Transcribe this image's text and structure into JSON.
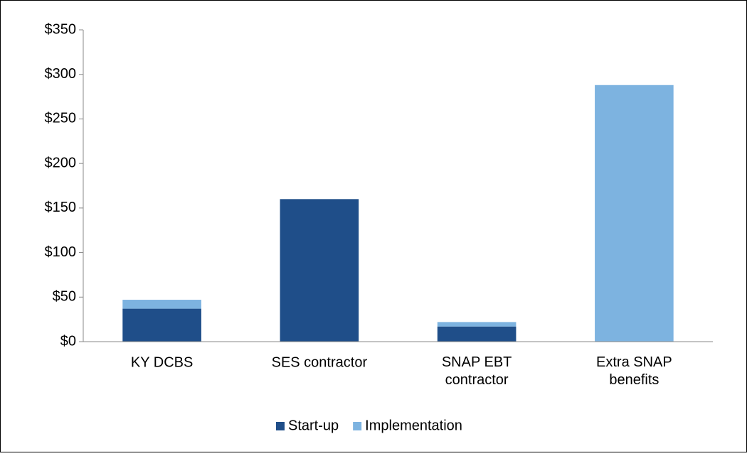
{
  "chart_data": {
    "type": "stacked_bar",
    "categories": [
      "KY DCBS",
      "SES contractor",
      "SNAP EBT\ncontractor",
      "Extra SNAP\nbenefits"
    ],
    "series": [
      {
        "name": "Start-up",
        "color": "#1f4e89",
        "values": [
          37,
          160,
          17,
          0
        ]
      },
      {
        "name": "Implementation",
        "color": "#7db3e0",
        "values": [
          10,
          0,
          5,
          288
        ]
      }
    ],
    "ylim": [
      0,
      350
    ],
    "yticks": [
      {
        "value": 0,
        "label": "$0"
      },
      {
        "value": 50,
        "label": "$50"
      },
      {
        "value": 100,
        "label": "$100"
      },
      {
        "value": 150,
        "label": "$150"
      },
      {
        "value": 200,
        "label": "$200"
      },
      {
        "value": 250,
        "label": "$250"
      },
      {
        "value": 300,
        "label": "$300"
      },
      {
        "value": 350,
        "label": "$350"
      }
    ],
    "legend": "bottom"
  }
}
